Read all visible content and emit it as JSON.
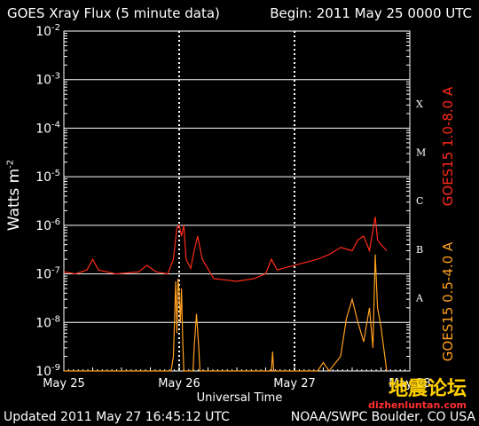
{
  "header": {
    "title": "GOES Xray Flux (5 minute data)",
    "begin": "Begin:  2011 May 25 0000 UTC"
  },
  "footer": {
    "updated": "Updated 2011 May 27 16:45:12 UTC",
    "credit": "NOAA/SWPC Boulder, CO USA"
  },
  "watermark": {
    "logo_text": "地震论坛",
    "url": "dizhenluntan.com"
  },
  "chart_data": {
    "type": "line",
    "xlabel": "Universal Time",
    "ylabel": "Watts m",
    "ylabel_sup": "-2",
    "x_tick_labels": [
      "May 25",
      "May 26",
      "May 27",
      "May 28"
    ],
    "x_units": "days since 2011 May 25 0000 UTC",
    "xlim": [
      0,
      3
    ],
    "yscale": "log",
    "ylim": [
      1e-09,
      0.01
    ],
    "y_tick_labels": [
      {
        "base": "10",
        "exp": "-2",
        "value": 0.01
      },
      {
        "base": "10",
        "exp": "-3",
        "value": 0.001
      },
      {
        "base": "10",
        "exp": "-4",
        "value": 0.0001
      },
      {
        "base": "10",
        "exp": "-5",
        "value": 1e-05
      },
      {
        "base": "10",
        "exp": "-6",
        "value": 1e-06
      },
      {
        "base": "10",
        "exp": "-7",
        "value": 1e-07
      },
      {
        "base": "10",
        "exp": "-8",
        "value": 1e-08
      },
      {
        "base": "10",
        "exp": "-9",
        "value": 1e-09
      }
    ],
    "flare_classes": [
      {
        "label": "X",
        "value": 0.00032
      },
      {
        "label": "M",
        "value": 3.2e-05
      },
      {
        "label": "C",
        "value": 3.2e-06
      },
      {
        "label": "B",
        "value": 3.2e-07
      },
      {
        "label": "A",
        "value": 3.2e-08
      }
    ],
    "grid": true,
    "series": [
      {
        "name": "GOES15 1.0-8.0 A",
        "color": "#ff2a1a",
        "points": [
          [
            0.0,
            1.1e-07
          ],
          [
            0.1,
            1e-07
          ],
          [
            0.2,
            1.2e-07
          ],
          [
            0.25,
            2e-07
          ],
          [
            0.3,
            1.2e-07
          ],
          [
            0.45,
            1e-07
          ],
          [
            0.65,
            1.1e-07
          ],
          [
            0.72,
            1.5e-07
          ],
          [
            0.8,
            1.1e-07
          ],
          [
            0.9,
            1e-07
          ],
          [
            0.95,
            2e-07
          ],
          [
            0.98,
            9e-07
          ],
          [
            1.0,
            1e-06
          ],
          [
            1.02,
            6e-07
          ],
          [
            1.04,
            1e-06
          ],
          [
            1.06,
            2e-07
          ],
          [
            1.1,
            1.3e-07
          ],
          [
            1.13,
            3e-07
          ],
          [
            1.16,
            6e-07
          ],
          [
            1.2,
            2e-07
          ],
          [
            1.3,
            8e-08
          ],
          [
            1.5,
            7e-08
          ],
          [
            1.65,
            8e-08
          ],
          [
            1.75,
            1e-07
          ],
          [
            1.8,
            2e-07
          ],
          [
            1.85,
            1.2e-07
          ],
          [
            2.0,
            1.5e-07
          ],
          [
            2.2,
            2e-07
          ],
          [
            2.3,
            2.5e-07
          ],
          [
            2.4,
            3.5e-07
          ],
          [
            2.5,
            3e-07
          ],
          [
            2.55,
            5e-07
          ],
          [
            2.6,
            6e-07
          ],
          [
            2.65,
            3e-07
          ],
          [
            2.7,
            1.5e-06
          ],
          [
            2.72,
            5e-07
          ],
          [
            2.75,
            4e-07
          ],
          [
            2.8,
            3e-07
          ]
        ]
      },
      {
        "name": "GOES15 0.5-4.0 A",
        "color": "#ffa020",
        "points": [
          [
            0.0,
            1e-09
          ],
          [
            0.93,
            1e-09
          ],
          [
            0.95,
            2e-09
          ],
          [
            0.97,
            7e-08
          ],
          [
            0.98,
            6e-09
          ],
          [
            0.99,
            8e-08
          ],
          [
            1.0,
            4e-08
          ],
          [
            1.01,
            1e-08
          ],
          [
            1.02,
            5e-08
          ],
          [
            1.03,
            5e-09
          ],
          [
            1.04,
            1e-09
          ],
          [
            1.12,
            1e-09
          ],
          [
            1.13,
            3e-09
          ],
          [
            1.15,
            1.5e-08
          ],
          [
            1.17,
            3e-09
          ],
          [
            1.18,
            1e-09
          ],
          [
            1.8,
            1e-09
          ],
          [
            1.81,
            2.5e-09
          ],
          [
            1.82,
            1e-09
          ],
          [
            2.2,
            1e-09
          ],
          [
            2.25,
            1.5e-09
          ],
          [
            2.3,
            1e-09
          ],
          [
            2.4,
            2e-09
          ],
          [
            2.45,
            1.2e-08
          ],
          [
            2.5,
            3e-08
          ],
          [
            2.55,
            1e-08
          ],
          [
            2.6,
            4e-09
          ],
          [
            2.65,
            2e-08
          ],
          [
            2.68,
            3e-09
          ],
          [
            2.7,
            2.5e-07
          ],
          [
            2.72,
            2e-08
          ],
          [
            2.75,
            8e-09
          ],
          [
            2.8,
            1e-09
          ]
        ]
      }
    ]
  }
}
